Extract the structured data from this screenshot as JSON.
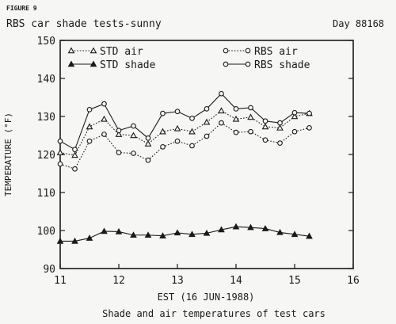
{
  "figure_label": "FIGURE 9",
  "day_label": "Day 88168",
  "caption": "Shade and air temperatures of test cars",
  "chart_data": {
    "type": "line",
    "title": "RBS car shade tests-sunny",
    "xlabel": "EST (16 JUN-1988)",
    "ylabel": "TEMPERATURE (°F)",
    "xlim": [
      11,
      16
    ],
    "ylim": [
      90,
      150
    ],
    "xticks": [
      11,
      12,
      13,
      14,
      15,
      16
    ],
    "yticks": [
      90,
      100,
      110,
      120,
      130,
      140,
      150
    ],
    "x": [
      11.0,
      11.25,
      11.5,
      11.75,
      12.0,
      12.25,
      12.5,
      12.75,
      13.0,
      13.25,
      13.5,
      13.75,
      14.0,
      14.25,
      14.5,
      14.75,
      15.0,
      15.25
    ],
    "legend_position": "top",
    "grid": false,
    "series": [
      {
        "name": "STD air",
        "marker": "triangle-open",
        "dash": "dotted",
        "values": [
          120.5,
          119.8,
          127.3,
          129.3,
          125.3,
          125.0,
          122.8,
          126.0,
          126.8,
          126.0,
          128.5,
          131.5,
          129.3,
          129.8,
          127.3,
          127.0,
          130.0,
          130.8
        ]
      },
      {
        "name": "STD shade",
        "marker": "triangle-filled",
        "dash": "solid",
        "values": [
          97.2,
          97.2,
          98.0,
          99.8,
          99.7,
          98.8,
          98.8,
          98.6,
          99.4,
          99.0,
          99.3,
          100.2,
          101.0,
          100.8,
          100.5,
          99.5,
          99.0,
          98.5
        ]
      },
      {
        "name": "RBS air",
        "marker": "circle-open",
        "dash": "dotted",
        "values": [
          117.5,
          116.2,
          123.5,
          125.3,
          120.5,
          120.3,
          118.5,
          122.0,
          123.5,
          122.3,
          124.8,
          128.3,
          125.8,
          126.0,
          123.8,
          123.0,
          126.0,
          127.0
        ]
      },
      {
        "name": "RBS shade",
        "marker": "circle-open",
        "dash": "solid",
        "values": [
          123.5,
          121.3,
          131.8,
          133.3,
          126.3,
          127.5,
          124.3,
          130.8,
          131.3,
          129.5,
          132.0,
          136.0,
          132.0,
          132.3,
          128.8,
          128.3,
          131.0,
          130.8
        ]
      }
    ]
  }
}
